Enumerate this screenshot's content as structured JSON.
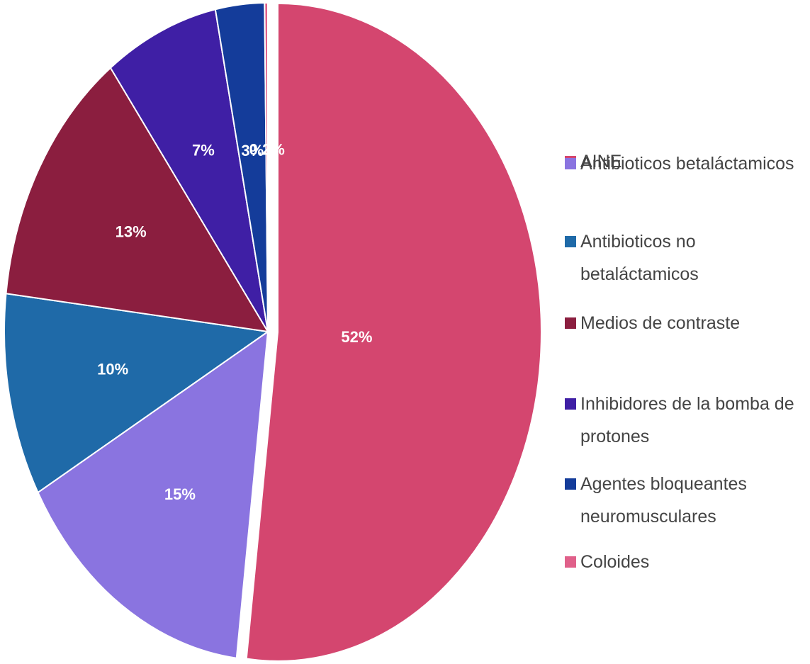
{
  "chart_data": {
    "type": "pie",
    "categories": [
      "AINE",
      "Antibioticos betaláctamicos",
      "Antibioticos no betaláctamicos",
      "Medios de contraste",
      "Inhibidores de la bomba de protones",
      "Agentes bloqueantes neuromusculares",
      "Coloides"
    ],
    "values": [
      52,
      15,
      10,
      13,
      7,
      3,
      0.2
    ],
    "value_labels": [
      "52%",
      "15%",
      "10%",
      "13%",
      "7%",
      "3%",
      "0.2%"
    ],
    "colors": [
      "#d4466f",
      "#8a74e0",
      "#1f6aa8",
      "#8b1e3f",
      "#3f1fa5",
      "#143c9a",
      "#e0608a"
    ],
    "legend": "right"
  }
}
